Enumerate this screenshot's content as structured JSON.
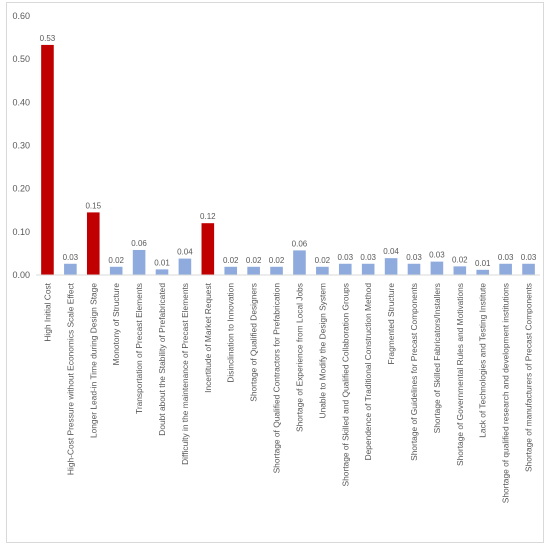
{
  "chart_data": {
    "type": "bar",
    "categories": [
      "High Initial Cost",
      "High-Cost Pressure without Economics Scale Effect",
      "Longer Lead-in Time during Design Stage",
      "Monotony of Structure",
      "Transportation of Precast Elements",
      "Doubt about the Stability of Prefabricated",
      "Difficulty in the maintenance of Precast Elements",
      "Incertitude of Market Request",
      "Disinclination to Innovation",
      "Shortage of Qualified Designers",
      "Shortage of Qualified Contractors for Prefabrication",
      "Shortage of Experience from Local Jobs",
      "Unable to Modify the Design System",
      "Shortage of Skilled and Qualified Collaboration Groups",
      "Dependence of Traditional Construction Method",
      "Fragmented Structure",
      "Shortage of Guidelines for Precast Components",
      "Shortage of Skilled Fabricators/Installers",
      "Shortage of Governmental Rules and Motivations",
      "Lack of Technologies and Testing Institute",
      "Shortage of qualified research and development institutions",
      "Shortage of manufacturers of Precast Components"
    ],
    "values": [
      0.533,
      0.026,
      0.145,
      0.019,
      0.058,
      0.013,
      0.038,
      0.12,
      0.019,
      0.019,
      0.019,
      0.057,
      0.019,
      0.026,
      0.026,
      0.039,
      0.026,
      0.031,
      0.02,
      0.012,
      0.026,
      0.026
    ],
    "data_labels": [
      "0.53",
      "0.03",
      "0.15",
      "0.02",
      "0.06",
      "0.01",
      "0.04",
      "0.12",
      "0.02",
      "0.02",
      "0.02",
      "0.06",
      "0.02",
      "0.03",
      "0.03",
      "0.04",
      "0.03",
      "0.03",
      "0.02",
      "0.01",
      "0.03",
      "0.03"
    ],
    "highlighted": [
      0,
      2,
      7
    ],
    "y_ticks": [
      "0.00",
      "0.10",
      "0.20",
      "0.30",
      "0.40",
      "0.50",
      "0.60"
    ],
    "ylim": [
      0,
      0.6
    ],
    "title": "",
    "xlabel": "",
    "ylabel": "",
    "grid": false,
    "legend": "none",
    "colors": {
      "highlight": "#c00000",
      "default": "#8faadc",
      "axis": "#d9d9d9",
      "text": "#595959"
    }
  }
}
